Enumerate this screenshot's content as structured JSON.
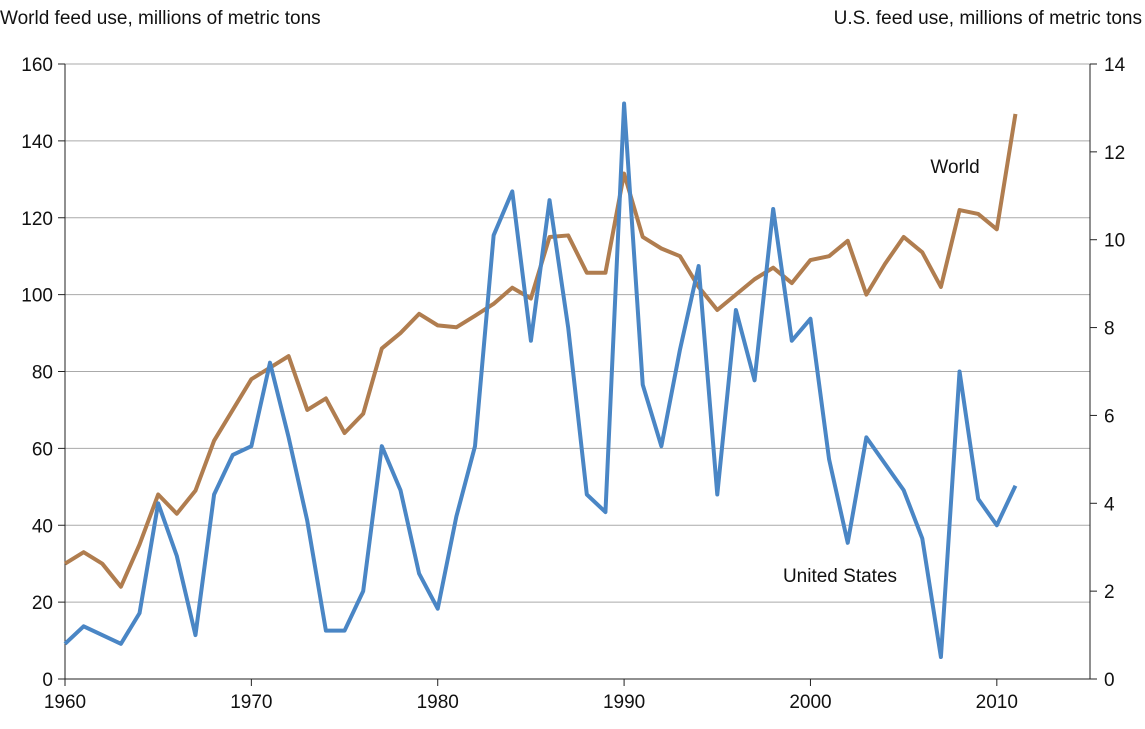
{
  "chart_data": {
    "type": "line",
    "y_label": "World feed use, millions of metric tons",
    "y2_label": "U.S. feed use, millions of metric tons",
    "annotations": [
      "World",
      "United States"
    ],
    "x": [
      1960,
      1961,
      1962,
      1963,
      1964,
      1965,
      1966,
      1967,
      1968,
      1969,
      1970,
      1971,
      1972,
      1973,
      1974,
      1975,
      1976,
      1977,
      1978,
      1979,
      1980,
      1981,
      1982,
      1983,
      1984,
      1985,
      1986,
      1987,
      1988,
      1989,
      1990,
      1991,
      1992,
      1993,
      1994,
      1995,
      1996,
      1997,
      1998,
      1999,
      2000,
      2001,
      2002,
      2003,
      2004,
      2005,
      2006,
      2007,
      2008,
      2009,
      2010,
      2011
    ],
    "series": [
      {
        "name": "World",
        "color": "#b07d4f",
        "axis": "y",
        "values": [
          30,
          33,
          30,
          24,
          35,
          48,
          43,
          49,
          62,
          70,
          78,
          81,
          84,
          70,
          73,
          64,
          69,
          86,
          90,
          95,
          92,
          91.5,
          94.5,
          97.6,
          101.8,
          99,
          115,
          115.4,
          105.7,
          105.7,
          131.5,
          115,
          112,
          110,
          102,
          96,
          100,
          104,
          107,
          103,
          109,
          110,
          114,
          100,
          108,
          115,
          111,
          102,
          122,
          121,
          117,
          147
        ]
      },
      {
        "name": "United States",
        "color": "#4a86c5",
        "axis": "y2",
        "values": [
          0.8,
          1.2,
          1.0,
          0.8,
          1.5,
          4.0,
          2.8,
          1.0,
          4.2,
          5.1,
          5.3,
          7.2,
          5.5,
          3.6,
          1.1,
          1.1,
          2.0,
          5.3,
          4.3,
          2.4,
          1.6,
          3.7,
          5.3,
          10.1,
          11.1,
          7.7,
          10.9,
          8.0,
          4.2,
          3.8,
          13.1,
          6.7,
          5.3,
          7.5,
          9.4,
          4.2,
          8.4,
          6.8,
          10.7,
          7.7,
          8.2,
          5.0,
          3.1,
          5.5,
          4.9,
          4.3,
          3.2,
          0.5,
          7.0,
          4.1,
          3.5,
          4.4
        ]
      }
    ],
    "xlim": [
      1960,
      2015
    ],
    "xticks": [
      1960,
      1970,
      1980,
      1990,
      2000,
      2010
    ],
    "ylim": [
      0,
      160
    ],
    "yticks": [
      0,
      20,
      40,
      60,
      80,
      100,
      120,
      140,
      160
    ],
    "y2lim": [
      0,
      14
    ],
    "y2ticks": [
      0,
      2,
      4,
      6,
      8,
      10,
      12,
      14
    ],
    "grid": true
  }
}
